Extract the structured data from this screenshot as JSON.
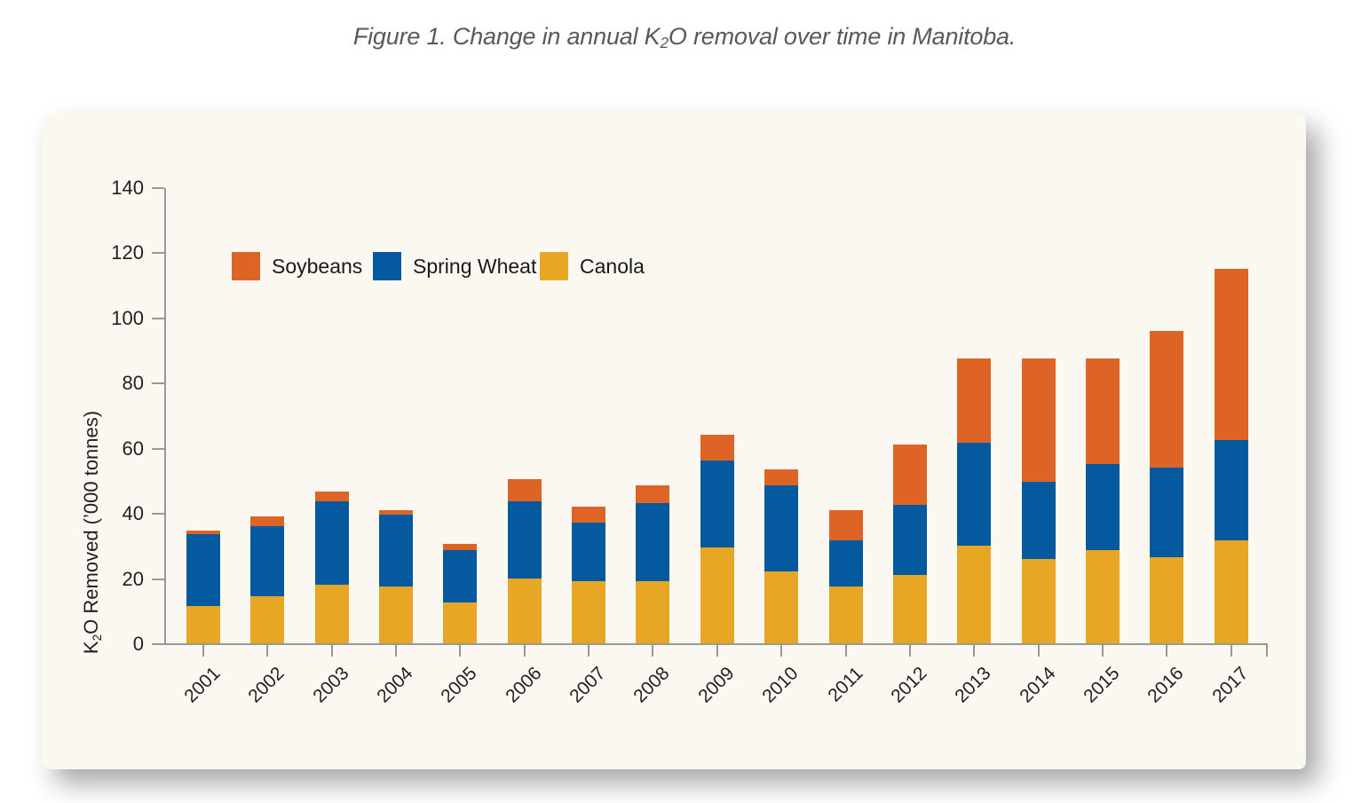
{
  "title": {
    "prefix": "Figure 1. Change in annual K",
    "sub": "2",
    "suffix": "O removal over time in Manitoba."
  },
  "chart_data": {
    "type": "bar",
    "stacked": true,
    "title": "Figure 1. Change in annual K₂O removal over time in Manitoba.",
    "ylabel": "K₂O Removed (’000 tonnes)",
    "ylabel_parts": {
      "prefix": "K",
      "sub": "2",
      "suffix": "O Removed (’000 tonnes)"
    },
    "categories": [
      "2001",
      "2002",
      "2003",
      "2004",
      "2005",
      "2006",
      "2007",
      "2008",
      "2009",
      "2010",
      "2011",
      "2012",
      "2013",
      "2014",
      "2015",
      "2016",
      "2017"
    ],
    "series": [
      {
        "name": "Soybeans",
        "color": "#DE6425",
        "values": [
          1,
          3,
          3,
          1.5,
          2,
          7,
          5,
          5.5,
          8,
          5,
          9.5,
          18.5,
          26,
          38,
          32.5,
          42,
          52.5
        ]
      },
      {
        "name": "Spring Wheat",
        "color": "#05599E",
        "values": [
          22,
          21.5,
          25.5,
          22,
          16,
          23.5,
          18,
          24,
          26.5,
          26.5,
          14,
          21.5,
          31.5,
          23.5,
          26.5,
          27.5,
          31
        ]
      },
      {
        "name": "Canola",
        "color": "#E7A623",
        "values": [
          11.5,
          14.5,
          18,
          17.5,
          12.5,
          20,
          19,
          19,
          29.5,
          22,
          17.5,
          21,
          30,
          26,
          28.5,
          26.5,
          31.5
        ]
      }
    ],
    "stack_order_bottom_to_top": [
      "Canola",
      "Spring Wheat",
      "Soybeans"
    ],
    "totals": [
      34.5,
      39,
      46.5,
      41,
      30.5,
      50.5,
      42,
      48.5,
      64,
      53.5,
      41,
      61,
      87.5,
      87.5,
      87.5,
      96,
      115
    ],
    "yticks": [
      0,
      20,
      40,
      60,
      80,
      100,
      120,
      140
    ],
    "ylim": [
      0,
      140
    ],
    "grid": false,
    "legend_position": "inside-top-left"
  },
  "colors": {
    "page_bg": "#FFFFFF",
    "panel_bg": "#FAF8F1",
    "axis": "#969899",
    "tick_label": "#231F20",
    "title_text": "#58595B"
  }
}
